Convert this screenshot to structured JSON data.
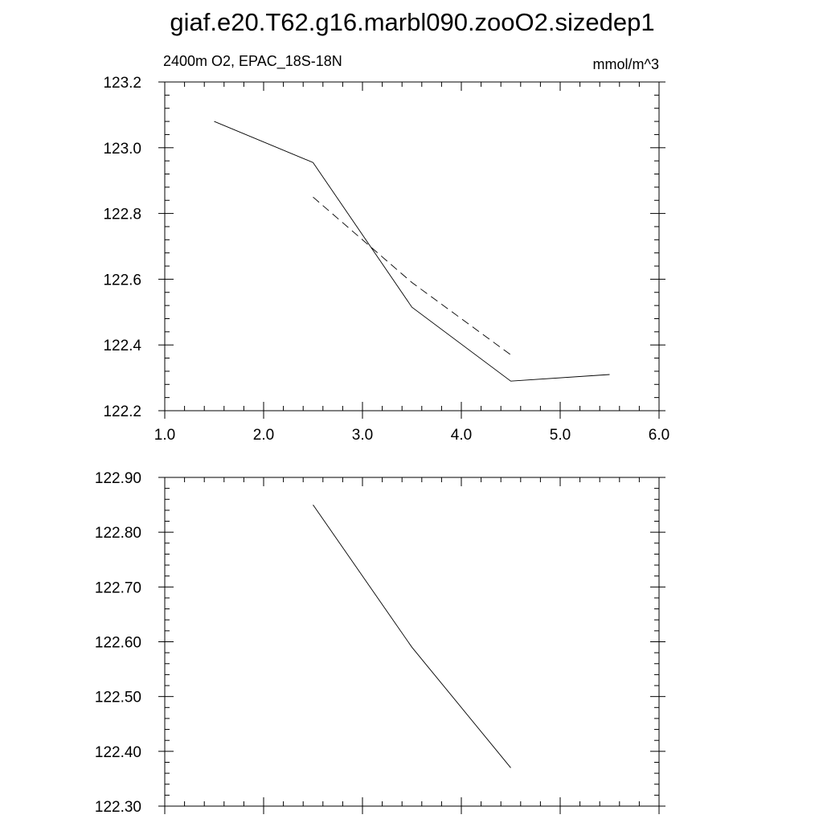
{
  "title": "giaf.e20.T62.g16.marbl090.zooO2.sizedep1",
  "chart_data": [
    {
      "type": "line",
      "title_left": "2400m O2, EPAC_18S-18N",
      "title_right": "mmol/m^3",
      "xlim": [
        1.0,
        6.0
      ],
      "ylim": [
        122.2,
        123.2
      ],
      "x_ticks": [
        "1.0",
        "2.0",
        "3.0",
        "4.0",
        "5.0",
        "6.0"
      ],
      "y_ticks": [
        "122.2",
        "122.4",
        "122.6",
        "122.8",
        "123.0",
        "123.2"
      ],
      "series": [
        {
          "style": "solid",
          "x": [
            1.5,
            2.5,
            3.5,
            4.5,
            5.5
          ],
          "y": [
            123.08,
            122.955,
            122.515,
            122.29,
            122.31
          ]
        },
        {
          "style": "dashed",
          "x": [
            2.5,
            3.5,
            4.5
          ],
          "y": [
            122.85,
            122.59,
            122.37
          ]
        }
      ]
    },
    {
      "type": "line",
      "xlim": [
        1.0,
        6.0
      ],
      "ylim": [
        122.3,
        122.9
      ],
      "y_ticks": [
        "122.30",
        "122.40",
        "122.50",
        "122.60",
        "122.70",
        "122.80",
        "122.90"
      ],
      "series": [
        {
          "style": "solid",
          "x": [
            2.5,
            3.5,
            4.5
          ],
          "y": [
            122.85,
            122.59,
            122.37
          ]
        }
      ]
    }
  ]
}
